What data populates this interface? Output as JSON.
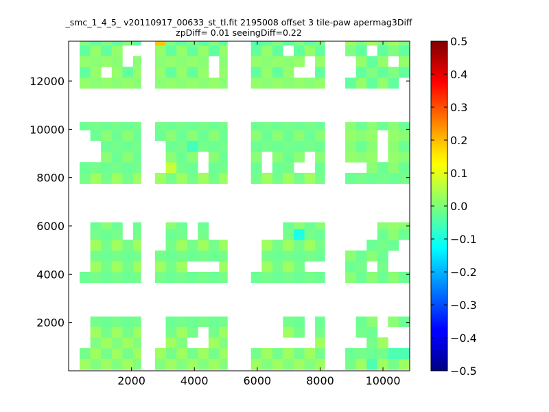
{
  "chart_data": {
    "type": "heatmap",
    "title": "_smc_1_4_5_ v20110917_00633_st_tl.fit 2195008 offset 3 tile-paw apermag3Diff",
    "subtitle": "zpDiff= 0.01 seeingDiff=0.22",
    "xlabel": "",
    "ylabel": "",
    "xlim": [
      0,
      10850
    ],
    "ylim": [
      0,
      13650
    ],
    "xticks": [
      2000,
      4000,
      6000,
      8000,
      10000
    ],
    "yticks": [
      2000,
      4000,
      6000,
      8000,
      10000,
      12000
    ],
    "xtick_labels": [
      "2000",
      "4000",
      "6000",
      "8000",
      "10000"
    ],
    "ytick_labels": [
      "2000",
      "4000",
      "6000",
      "8000",
      "10000",
      "12000"
    ],
    "cell_size": [
      340,
      445
    ],
    "grid": false,
    "colormap": "jet",
    "colorbar": {
      "vmin": -0.5,
      "vmax": 0.5,
      "ticks": [
        0.5,
        0.4,
        0.3,
        0.2,
        0.1,
        0.0,
        -0.1,
        -0.2,
        -0.3,
        -0.4,
        -0.5
      ],
      "tick_labels": [
        "0.5",
        "0.4",
        "0.3",
        "0.2",
        "0.1",
        "0.0",
        "−0.1",
        "−0.2",
        "−0.3",
        "−0.4",
        "−0.5"
      ]
    },
    "base_value": 0.0,
    "default_value": 0.0,
    "value_rows_top_to_bottom": [
      "......1....C..##.......#.#.....0.000",
      "...011.0.0..1011....1.1.11.....001#0",
      ".....00..0.0.001.....0..0..........."
    ],
    "outliers": [
      {
        "x": 3000,
        "y": 13500,
        "value": 0.18
      },
      {
        "x": 3300,
        "y": 8350,
        "value": 0.07
      },
      {
        "x": 6000,
        "y": 1150,
        "value": 0.1
      },
      {
        "x": 2900,
        "y": 2050,
        "value": -0.06
      },
      {
        "x": 7250,
        "y": 5800,
        "value": -0.1
      },
      {
        "x": 10200,
        "y": 4550,
        "value": -0.08
      },
      {
        "x": 3950,
        "y": 9450,
        "value": -0.06
      },
      {
        "x": 6000,
        "y": 13500,
        "value": -0.04
      },
      {
        "x": 9650,
        "y": 350,
        "value": -0.05
      },
      {
        "x": 10500,
        "y": 800,
        "value": -0.05
      }
    ],
    "tile_columns": [
      {
        "x_min": 350,
        "x_max": 2300
      },
      {
        "x_min": 2750,
        "x_max": 5050
      },
      {
        "x_min": 5800,
        "x_max": 8150
      },
      {
        "x_min": 8800,
        "x_max": 10850
      }
    ],
    "tile_rows": [
      {
        "y_min": 50,
        "y_max": 2250
      },
      {
        "y_min": 3650,
        "y_max": 6150
      },
      {
        "y_min": 7750,
        "y_max": 10300
      },
      {
        "y_min": 11700,
        "y_max": 13650
      }
    ],
    "value_note_range": [
      -0.1,
      0.18
    ]
  }
}
